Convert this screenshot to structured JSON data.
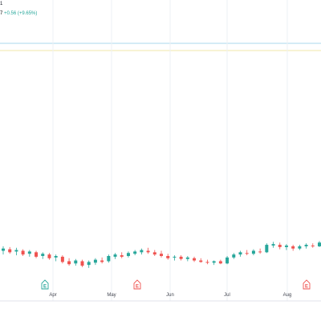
{
  "legend": {
    "name_fragment": "1",
    "change_prefix": "7",
    "change_text": "+0.56 (+9.65%)"
  },
  "colors": {
    "up": "#26a69a",
    "down": "#ef5350",
    "line_blue": "#a9d9ee",
    "line_yellow": "#f2e7a8",
    "grid": "#eef0f4",
    "axis_text": "#434651"
  },
  "x_axis": {
    "months": [
      "Apr",
      "May",
      "Jun",
      "Jul",
      "Aug"
    ]
  },
  "events": [
    {
      "type": "earnings",
      "glyph": "E",
      "status": "positive",
      "color": "#26a69a"
    },
    {
      "type": "earnings",
      "glyph": "E",
      "status": "negative",
      "color": "#ef5350"
    },
    {
      "type": "earnings",
      "glyph": "E",
      "status": "negative",
      "color": "#ef5350"
    }
  ],
  "chart_data": {
    "type": "candlestick",
    "x_labels": [
      "Apr",
      "May",
      "Jun",
      "Jul",
      "Aug"
    ],
    "candles": [
      {
        "o": 6.1,
        "h": 6.22,
        "l": 6.0,
        "c": 6.16,
        "dir": "up"
      },
      {
        "o": 6.14,
        "h": 6.2,
        "l": 6.02,
        "c": 6.06,
        "dir": "down"
      },
      {
        "o": 6.08,
        "h": 6.18,
        "l": 5.98,
        "c": 6.12,
        "dir": "up"
      },
      {
        "o": 6.1,
        "h": 6.14,
        "l": 5.96,
        "c": 6.0,
        "dir": "down"
      },
      {
        "o": 6.02,
        "h": 6.12,
        "l": 5.94,
        "c": 6.08,
        "dir": "up"
      },
      {
        "o": 6.06,
        "h": 6.1,
        "l": 5.9,
        "c": 5.94,
        "dir": "down"
      },
      {
        "o": 5.96,
        "h": 6.06,
        "l": 5.88,
        "c": 6.02,
        "dir": "up"
      },
      {
        "o": 6.0,
        "h": 6.04,
        "l": 5.86,
        "c": 5.9,
        "dir": "down"
      },
      {
        "o": 5.92,
        "h": 6.0,
        "l": 5.82,
        "c": 5.96,
        "dir": "up"
      },
      {
        "o": 5.94,
        "h": 5.98,
        "l": 5.76,
        "c": 5.8,
        "dir": "down"
      },
      {
        "o": 5.82,
        "h": 5.9,
        "l": 5.7,
        "c": 5.74,
        "dir": "down"
      },
      {
        "o": 5.76,
        "h": 5.88,
        "l": 5.7,
        "c": 5.84,
        "dir": "up"
      },
      {
        "o": 5.82,
        "h": 5.86,
        "l": 5.66,
        "c": 5.7,
        "dir": "down"
      },
      {
        "o": 5.72,
        "h": 5.84,
        "l": 5.64,
        "c": 5.8,
        "dir": "up"
      },
      {
        "o": 5.78,
        "h": 5.9,
        "l": 5.72,
        "c": 5.86,
        "dir": "up"
      },
      {
        "o": 5.84,
        "h": 5.92,
        "l": 5.76,
        "c": 5.8,
        "dir": "down"
      },
      {
        "o": 5.82,
        "h": 6.0,
        "l": 5.78,
        "c": 5.96,
        "dir": "up"
      },
      {
        "o": 5.94,
        "h": 6.04,
        "l": 5.88,
        "c": 6.0,
        "dir": "up"
      },
      {
        "o": 5.98,
        "h": 6.06,
        "l": 5.9,
        "c": 5.94,
        "dir": "down"
      },
      {
        "o": 5.96,
        "h": 6.08,
        "l": 5.92,
        "c": 6.04,
        "dir": "up"
      },
      {
        "o": 6.02,
        "h": 6.12,
        "l": 5.98,
        "c": 6.08,
        "dir": "up"
      },
      {
        "o": 6.06,
        "h": 6.16,
        "l": 6.0,
        "c": 6.12,
        "dir": "up"
      },
      {
        "o": 6.1,
        "h": 6.18,
        "l": 6.02,
        "c": 6.06,
        "dir": "down"
      },
      {
        "o": 6.06,
        "h": 6.12,
        "l": 5.96,
        "c": 6.0,
        "dir": "down"
      },
      {
        "o": 6.02,
        "h": 6.1,
        "l": 5.92,
        "c": 5.96,
        "dir": "down"
      },
      {
        "o": 5.96,
        "h": 6.02,
        "l": 5.86,
        "c": 5.9,
        "dir": "down"
      },
      {
        "o": 5.92,
        "h": 5.98,
        "l": 5.84,
        "c": 5.94,
        "dir": "up"
      },
      {
        "o": 5.94,
        "h": 5.98,
        "l": 5.84,
        "c": 5.88,
        "dir": "down"
      },
      {
        "o": 5.88,
        "h": 5.96,
        "l": 5.82,
        "c": 5.92,
        "dir": "up"
      },
      {
        "o": 5.9,
        "h": 5.94,
        "l": 5.8,
        "c": 5.84,
        "dir": "down"
      },
      {
        "o": 5.84,
        "h": 5.9,
        "l": 5.78,
        "c": 5.8,
        "dir": "down"
      },
      {
        "o": 5.8,
        "h": 5.86,
        "l": 5.74,
        "c": 5.78,
        "dir": "down"
      },
      {
        "o": 5.78,
        "h": 5.84,
        "l": 5.72,
        "c": 5.82,
        "dir": "up"
      },
      {
        "o": 5.82,
        "h": 5.86,
        "l": 5.74,
        "c": 5.76,
        "dir": "down"
      },
      {
        "o": 5.76,
        "h": 5.96,
        "l": 5.74,
        "c": 5.92,
        "dir": "up"
      },
      {
        "o": 5.92,
        "h": 6.04,
        "l": 5.88,
        "c": 6.0,
        "dir": "up"
      },
      {
        "o": 6.0,
        "h": 6.1,
        "l": 5.94,
        "c": 6.06,
        "dir": "up"
      },
      {
        "o": 6.04,
        "h": 6.12,
        "l": 5.98,
        "c": 6.02,
        "dir": "down"
      },
      {
        "o": 6.02,
        "h": 6.14,
        "l": 5.98,
        "c": 6.1,
        "dir": "up"
      },
      {
        "o": 6.08,
        "h": 6.16,
        "l": 6.02,
        "c": 6.06,
        "dir": "down"
      },
      {
        "o": 6.06,
        "h": 6.3,
        "l": 6.04,
        "c": 6.26,
        "dir": "up"
      },
      {
        "o": 6.24,
        "h": 6.34,
        "l": 6.18,
        "c": 6.28,
        "dir": "up"
      },
      {
        "o": 6.26,
        "h": 6.32,
        "l": 6.14,
        "c": 6.2,
        "dir": "down"
      },
      {
        "o": 6.2,
        "h": 6.28,
        "l": 6.12,
        "c": 6.24,
        "dir": "up"
      },
      {
        "o": 6.22,
        "h": 6.26,
        "l": 6.1,
        "c": 6.16,
        "dir": "down"
      },
      {
        "o": 6.16,
        "h": 6.26,
        "l": 6.12,
        "c": 6.22,
        "dir": "up"
      },
      {
        "o": 6.22,
        "h": 6.3,
        "l": 6.16,
        "c": 6.26,
        "dir": "up"
      },
      {
        "o": 6.24,
        "h": 6.3,
        "l": 6.18,
        "c": 6.22,
        "dir": "down"
      },
      {
        "o": 6.22,
        "h": 6.36,
        "l": 6.2,
        "c": 6.32,
        "dir": "up"
      }
    ]
  }
}
